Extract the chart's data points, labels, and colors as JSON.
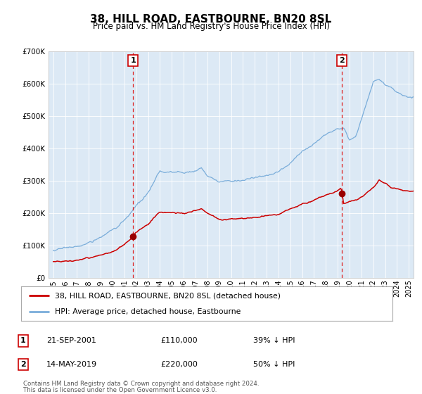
{
  "title": "38, HILL ROAD, EASTBOURNE, BN20 8SL",
  "subtitle": "Price paid vs. HM Land Registry's House Price Index (HPI)",
  "outer_bg_color": "#ffffff",
  "plot_bg_color": "#dce9f5",
  "red_line_label": "38, HILL ROAD, EASTBOURNE, BN20 8SL (detached house)",
  "blue_line_label": "HPI: Average price, detached house, Eastbourne",
  "transaction1_date": "21-SEP-2001",
  "transaction1_price": "£110,000",
  "transaction1_pct": "39% ↓ HPI",
  "transaction2_date": "14-MAY-2019",
  "transaction2_price": "£220,000",
  "transaction2_pct": "50% ↓ HPI",
  "footnote1": "Contains HM Land Registry data © Crown copyright and database right 2024.",
  "footnote2": "This data is licensed under the Open Government Licence v3.0.",
  "ylim": [
    0,
    700000
  ],
  "yticks": [
    0,
    100000,
    200000,
    300000,
    400000,
    500000,
    600000,
    700000
  ],
  "ytick_labels": [
    "£0",
    "£100K",
    "£200K",
    "£300K",
    "£400K",
    "£500K",
    "£600K",
    "£700K"
  ],
  "red_color": "#cc0000",
  "blue_color": "#7aadda",
  "dashed_color": "#dd2222",
  "marker_color": "#990000",
  "transaction1_year": 2001.73,
  "transaction2_year": 2019.37,
  "xstart": 1995,
  "xend": 2025
}
